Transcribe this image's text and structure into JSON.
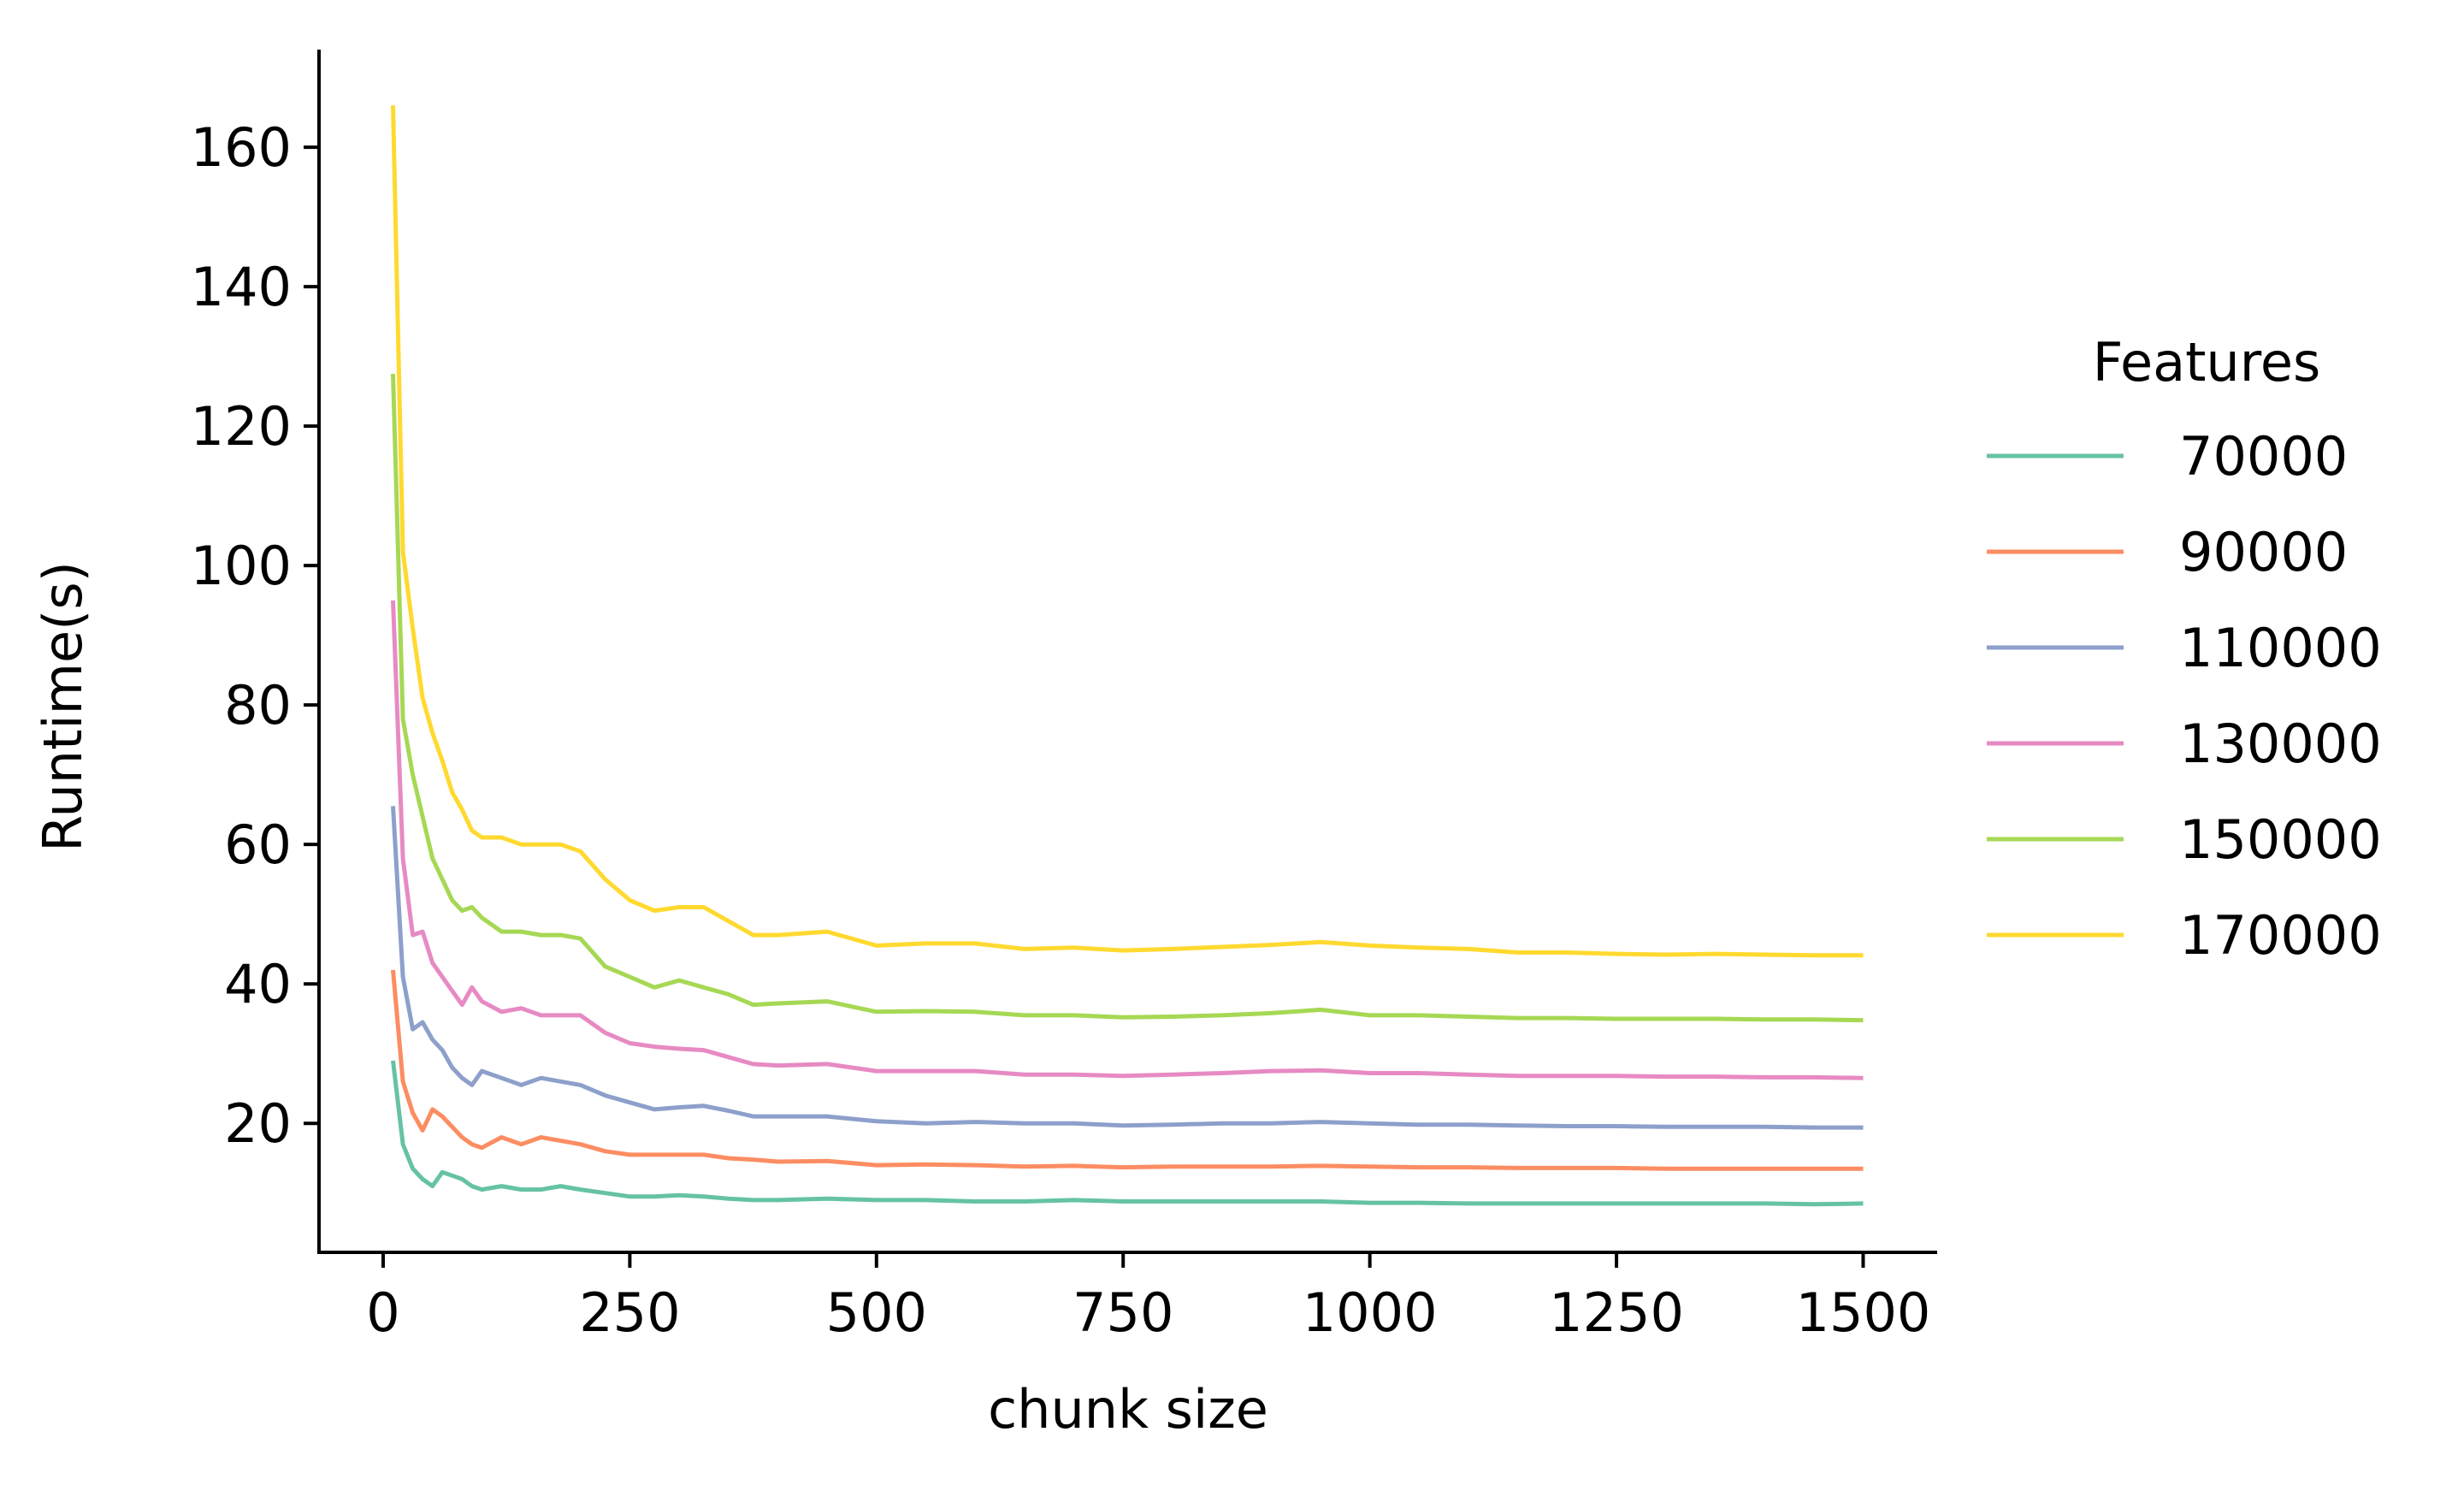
{
  "chart_data": {
    "type": "line",
    "title": "",
    "xlabel": "chunk size",
    "ylabel": "Runtime(s)",
    "xlim": [
      -65,
      1575
    ],
    "ylim": [
      1.5,
      174
    ],
    "xticks": [
      0,
      250,
      500,
      750,
      1000,
      1250,
      1500
    ],
    "xtick_labels": [
      "0",
      "250",
      "500",
      "750",
      "1000",
      "1250",
      "1500"
    ],
    "yticks": [
      20,
      40,
      60,
      80,
      100,
      120,
      140,
      160
    ],
    "ytick_labels": [
      "20",
      "40",
      "60",
      "80",
      "100",
      "120",
      "140",
      "160"
    ],
    "grid": false,
    "legend": {
      "title": "Features",
      "placement": "right"
    },
    "x": [
      10,
      20,
      30,
      40,
      50,
      60,
      70,
      80,
      90,
      100,
      120,
      140,
      160,
      180,
      200,
      225,
      250,
      275,
      300,
      325,
      350,
      375,
      400,
      450,
      500,
      550,
      600,
      650,
      700,
      750,
      800,
      850,
      900,
      950,
      1000,
      1050,
      1100,
      1150,
      1200,
      1250,
      1300,
      1350,
      1400,
      1450,
      1500
    ],
    "series": [
      {
        "name": "70000",
        "color": "#66c2a5",
        "values": [
          29,
          17,
          13.5,
          12,
          11,
          13,
          12.5,
          12,
          11,
          10.5,
          11,
          10.5,
          10.5,
          11,
          10.5,
          10,
          9.5,
          9.5,
          9.7,
          9.5,
          9.2,
          9,
          9,
          9.2,
          9,
          9,
          8.8,
          8.8,
          9,
          8.8,
          8.8,
          8.8,
          8.8,
          8.8,
          8.6,
          8.6,
          8.5,
          8.5,
          8.5,
          8.5,
          8.5,
          8.5,
          8.5,
          8.4,
          8.5
        ]
      },
      {
        "name": "90000",
        "color": "#fc8d62",
        "values": [
          42,
          26,
          21.5,
          19,
          22,
          21,
          19.5,
          18,
          17,
          16.5,
          18,
          17,
          18,
          17.5,
          17,
          16,
          15.5,
          15.5,
          15.5,
          15.5,
          15,
          14.8,
          14.5,
          14.6,
          14,
          14.1,
          14,
          13.8,
          13.9,
          13.7,
          13.8,
          13.8,
          13.8,
          13.9,
          13.8,
          13.7,
          13.7,
          13.6,
          13.6,
          13.6,
          13.5,
          13.5,
          13.5,
          13.5,
          13.5
        ]
      },
      {
        "name": "110000",
        "color": "#8da0cb",
        "values": [
          65.5,
          41,
          33.5,
          34.5,
          32,
          30.5,
          28,
          26.5,
          25.5,
          27.5,
          26.5,
          25.5,
          26.5,
          26,
          25.5,
          24,
          23,
          22,
          22.3,
          22.5,
          21.8,
          21,
          21,
          21,
          20.3,
          20,
          20.2,
          20,
          20,
          19.7,
          19.8,
          20,
          20,
          20.2,
          20,
          19.8,
          19.8,
          19.7,
          19.6,
          19.6,
          19.5,
          19.5,
          19.5,
          19.4,
          19.4
        ]
      },
      {
        "name": "130000",
        "color": "#e78ac3",
        "values": [
          95,
          58,
          47,
          47.5,
          43,
          41,
          39,
          37,
          39.5,
          37.5,
          36,
          36.5,
          35.5,
          35.5,
          35.5,
          33,
          31.5,
          31,
          30.7,
          30.5,
          29.5,
          28.5,
          28.3,
          28.5,
          27.5,
          27.5,
          27.5,
          27,
          27,
          26.8,
          27,
          27.2,
          27.5,
          27.6,
          27.2,
          27.2,
          27,
          26.8,
          26.8,
          26.8,
          26.7,
          26.7,
          26.6,
          26.6,
          26.5
        ]
      },
      {
        "name": "150000",
        "color": "#a6d854",
        "values": [
          127.5,
          78,
          70,
          64,
          58,
          55,
          52,
          50.5,
          51,
          49.5,
          47.5,
          47.5,
          47,
          47,
          46.5,
          42.5,
          41,
          39.5,
          40.5,
          39.5,
          38.5,
          37,
          37.2,
          37.5,
          36,
          36.1,
          36,
          35.5,
          35.5,
          35.2,
          35.3,
          35.5,
          35.8,
          36.3,
          35.5,
          35.5,
          35.3,
          35.1,
          35.1,
          35,
          35,
          35,
          34.9,
          34.9,
          34.8
        ]
      },
      {
        "name": "170000",
        "color": "#ffd92f",
        "values": [
          166,
          102,
          91,
          81,
          76,
          72,
          67.5,
          65,
          62,
          61,
          61,
          60,
          60,
          60,
          59,
          55,
          52,
          50.5,
          51,
          51,
          49,
          47,
          47,
          47.5,
          45.5,
          45.8,
          45.8,
          45,
          45.2,
          44.8,
          45,
          45.3,
          45.6,
          46,
          45.5,
          45.2,
          45,
          44.5,
          44.5,
          44.3,
          44.2,
          44.3,
          44.2,
          44.1,
          44.1
        ]
      }
    ]
  }
}
